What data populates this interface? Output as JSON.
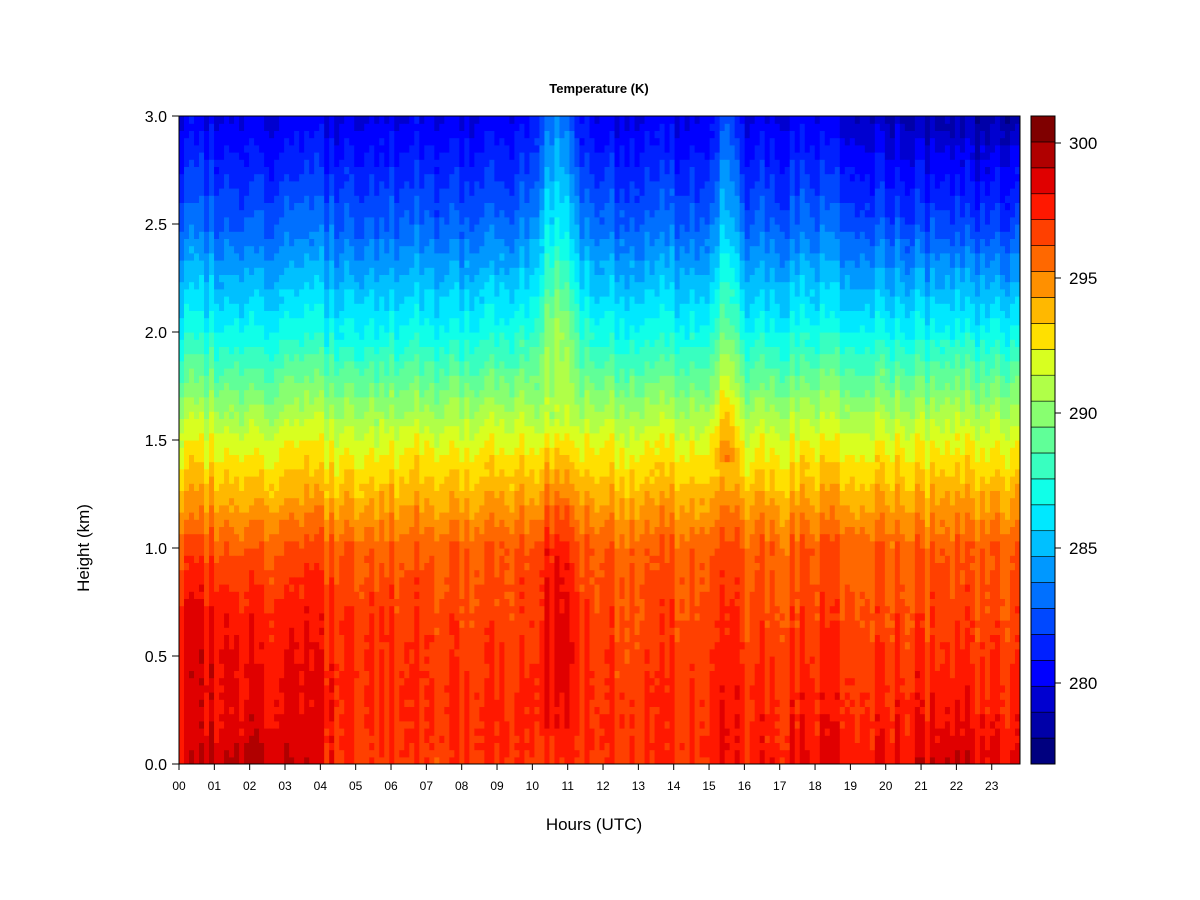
{
  "chart_data": {
    "type": "heatmap",
    "title": "Temperature (K)",
    "xlabel": "Hours (UTC)",
    "ylabel": "Height (km)",
    "x_ticks": [
      "00",
      "01",
      "02",
      "03",
      "04",
      "05",
      "06",
      "07",
      "08",
      "09",
      "10",
      "11",
      "12",
      "13",
      "14",
      "15",
      "16",
      "17",
      "18",
      "19",
      "20",
      "21",
      "22",
      "23"
    ],
    "xlim": [
      0,
      23.8
    ],
    "y_ticks": [
      "0.0",
      "0.5",
      "1.0",
      "1.5",
      "2.0",
      "2.5",
      "3.0"
    ],
    "ylim": [
      0,
      3.0
    ],
    "colorbar": {
      "ticks": [
        "280",
        "285",
        "290",
        "295",
        "300"
      ],
      "range": [
        277,
        301
      ],
      "levels": 24
    },
    "colors": [
      "#00007f",
      "#0000a8",
      "#0000d0",
      "#0000ff",
      "#0020ff",
      "#0048ff",
      "#0070ff",
      "#0098ff",
      "#00c0ff",
      "#00e8ff",
      "#10ffe8",
      "#38ffc0",
      "#60ff98",
      "#88ff70",
      "#b0ff48",
      "#d8ff20",
      "#ffe000",
      "#ffb800",
      "#ff9000",
      "#ff6800",
      "#ff4000",
      "#ff1800",
      "#e00000",
      "#b00000",
      "#7f0000"
    ],
    "surface_temperature_k": [
      {
        "hour": 0,
        "value": 298
      },
      {
        "hour": 2,
        "value": 300
      },
      {
        "hour": 5,
        "value": 297
      },
      {
        "hour": 8,
        "value": 297
      },
      {
        "hour": 11,
        "value": 297
      },
      {
        "hour": 14,
        "value": 297
      },
      {
        "hour": 17,
        "value": 298
      },
      {
        "hour": 20,
        "value": 298
      },
      {
        "hour": 22,
        "value": 299
      },
      {
        "hour": 23.8,
        "value": 298
      }
    ],
    "profile_temperature_k": [
      {
        "height": 0,
        "value": 298
      },
      {
        "height": 0.5,
        "value": 297
      },
      {
        "height": 1.0,
        "value": 296
      },
      {
        "height": 1.5,
        "value": 292
      },
      {
        "height": 2.0,
        "value": 287
      },
      {
        "height": 2.5,
        "value": 283
      },
      {
        "height": 3.0,
        "value": 280
      }
    ]
  }
}
